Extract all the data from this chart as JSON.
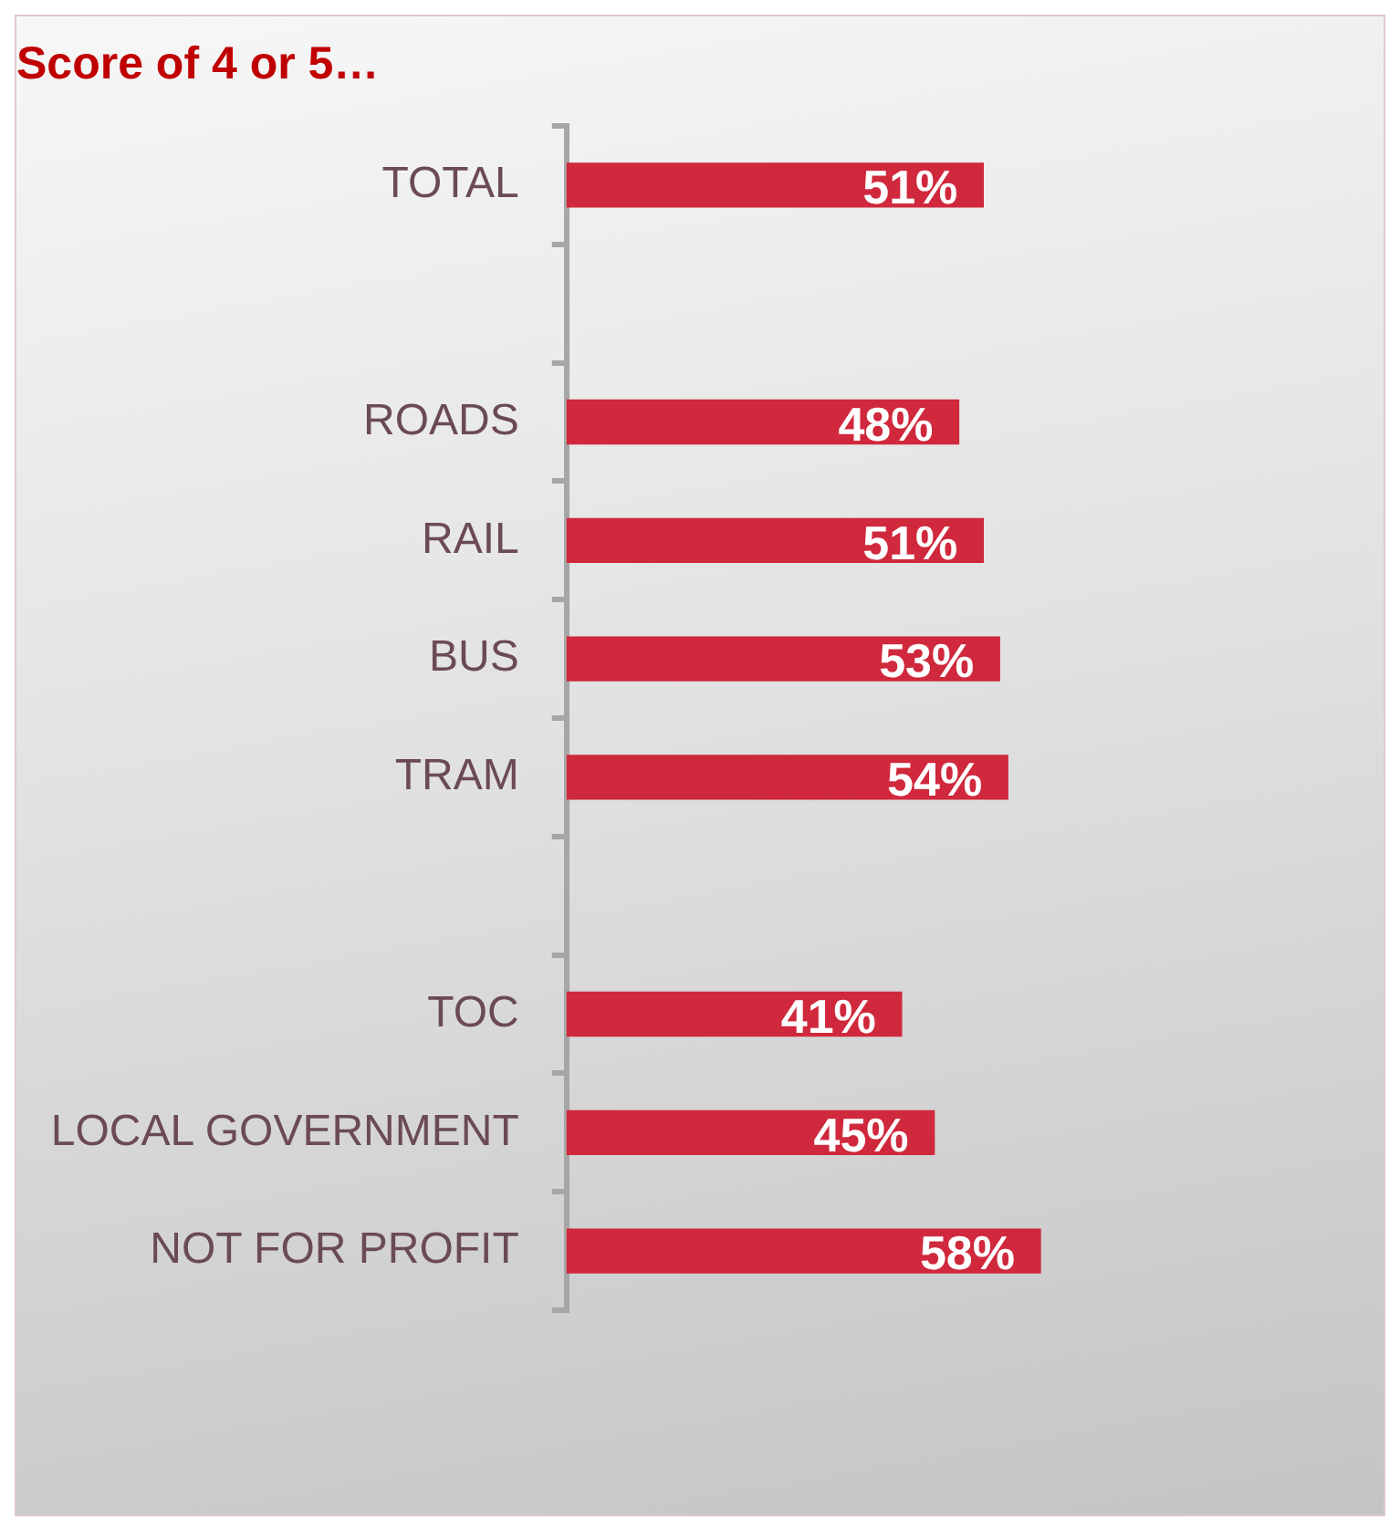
{
  "chart_data": {
    "type": "bar",
    "orientation": "horizontal",
    "title": "Score of 4 or 5…",
    "categories": [
      "TOTAL",
      null,
      "ROADS",
      "RAIL",
      "BUS",
      "TRAM",
      null,
      "TOC",
      "LOCAL GOVERNMENT",
      "NOT FOR PROFIT"
    ],
    "values": [
      51,
      null,
      48,
      51,
      53,
      54,
      null,
      41,
      45,
      58
    ],
    "value_labels": [
      "51%",
      null,
      "48%",
      "51%",
      "53%",
      "54%",
      null,
      "41%",
      "45%",
      "58%"
    ],
    "color": "#d0283c",
    "xlim": [
      0,
      100
    ],
    "grid": false,
    "legend": false,
    "tick_labels": "y"
  }
}
